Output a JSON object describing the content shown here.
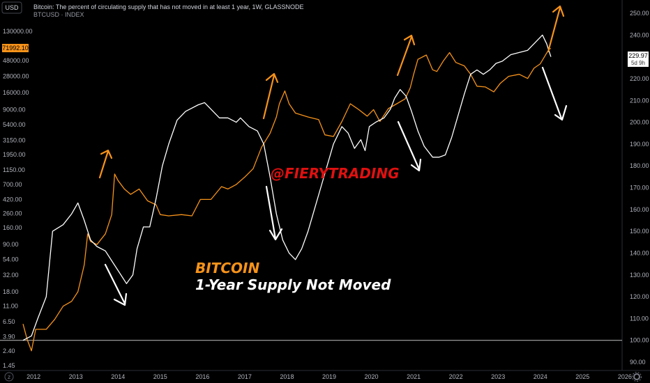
{
  "header": {
    "currency_button": "USD",
    "title_line": "Bitcoin: The percent of circulating supply that has not moved in at least 1 year, 1W, GLASSNODE",
    "subtitle_line": "BTCUSD · INDEX",
    "price_badge": "71992.10",
    "right_badge_value": "229.97",
    "right_badge_time": "5d 9h"
  },
  "annotations": {
    "watermark": "@FIERYTRADING",
    "title_orange": "BITCOIN",
    "title_white": "1-Year Supply Not Moved"
  },
  "colors": {
    "background": "#000000",
    "btc_price_line": "#f7931a",
    "supply_line": "#ffffff",
    "arrow_orange": "#f7931a",
    "arrow_white": "#ffffff",
    "watermark": "#e01010",
    "baseline": "#c0c0c0"
  },
  "icons": {
    "bottom_left": "z-icon",
    "bottom_right": "settings-icon"
  },
  "chart_data": {
    "type": "line",
    "x_ticks": [
      "2012",
      "2013",
      "2014",
      "2015",
      "2016",
      "2017",
      "2018",
      "2019",
      "2020",
      "2021",
      "2022",
      "2023",
      "2024",
      "2025",
      "2026"
    ],
    "left_axis": {
      "scale": "log",
      "ticks": [
        "130000.00",
        "48000.00",
        "28000.00",
        "16000.00",
        "9000.00",
        "5400.00",
        "3150.00",
        "1950.00",
        "1150.00",
        "700.00",
        "420.00",
        "260.00",
        "160.00",
        "90.00",
        "54.00",
        "32.00",
        "18.00",
        "11.00",
        "6.50",
        "3.90",
        "2.40",
        "1.45"
      ]
    },
    "right_axis": {
      "ticks": [
        250,
        240,
        230,
        220,
        210,
        200,
        190,
        180,
        170,
        160,
        150,
        140,
        130,
        120,
        110,
        100,
        90
      ],
      "range": [
        88,
        252
      ]
    },
    "baseline_value": 100,
    "series": [
      {
        "name": "BTCUSD",
        "axis": "left",
        "points": [
          [
            2011.75,
            6.0
          ],
          [
            2011.85,
            3.5
          ],
          [
            2011.95,
            2.4
          ],
          [
            2012.05,
            5.0
          ],
          [
            2012.3,
            5.0
          ],
          [
            2012.5,
            7.0
          ],
          [
            2012.7,
            11.0
          ],
          [
            2012.9,
            13.0
          ],
          [
            2013.05,
            18.0
          ],
          [
            2013.2,
            45.0
          ],
          [
            2013.28,
            130.0
          ],
          [
            2013.35,
            100.0
          ],
          [
            2013.5,
            90.0
          ],
          [
            2013.7,
            130.0
          ],
          [
            2013.85,
            250.0
          ],
          [
            2013.92,
            1000.0
          ],
          [
            2014.0,
            800.0
          ],
          [
            2014.15,
            600.0
          ],
          [
            2014.3,
            500.0
          ],
          [
            2014.5,
            600.0
          ],
          [
            2014.7,
            400.0
          ],
          [
            2014.9,
            350.0
          ],
          [
            2015.0,
            250.0
          ],
          [
            2015.2,
            240.0
          ],
          [
            2015.5,
            250.0
          ],
          [
            2015.75,
            240.0
          ],
          [
            2015.95,
            420.0
          ],
          [
            2016.2,
            420.0
          ],
          [
            2016.45,
            650.0
          ],
          [
            2016.6,
            600.0
          ],
          [
            2016.8,
            700.0
          ],
          [
            2017.0,
            900.0
          ],
          [
            2017.2,
            1200.0
          ],
          [
            2017.4,
            2500.0
          ],
          [
            2017.6,
            4000.0
          ],
          [
            2017.75,
            7000.0
          ],
          [
            2017.82,
            11000.0
          ],
          [
            2017.95,
            17000.0
          ],
          [
            2018.05,
            11000.0
          ],
          [
            2018.2,
            8000.0
          ],
          [
            2018.5,
            7000.0
          ],
          [
            2018.75,
            6400.0
          ],
          [
            2018.9,
            3800.0
          ],
          [
            2019.1,
            3600.0
          ],
          [
            2019.3,
            6000.0
          ],
          [
            2019.5,
            11000.0
          ],
          [
            2019.7,
            9000.0
          ],
          [
            2019.9,
            7200.0
          ],
          [
            2020.05,
            9000.0
          ],
          [
            2020.2,
            6000.0
          ],
          [
            2020.4,
            9300.0
          ],
          [
            2020.6,
            11000.0
          ],
          [
            2020.8,
            13000.0
          ],
          [
            2020.92,
            19000.0
          ],
          [
            2021.0,
            30000.0
          ],
          [
            2021.1,
            50000.0
          ],
          [
            2021.3,
            58000.0
          ],
          [
            2021.45,
            35000.0
          ],
          [
            2021.55,
            33000.0
          ],
          [
            2021.7,
            47000.0
          ],
          [
            2021.85,
            63000.0
          ],
          [
            2022.0,
            45000.0
          ],
          [
            2022.2,
            40000.0
          ],
          [
            2022.35,
            30000.0
          ],
          [
            2022.5,
            20000.0
          ],
          [
            2022.7,
            19500.0
          ],
          [
            2022.9,
            16500.0
          ],
          [
            2023.05,
            22000.0
          ],
          [
            2023.25,
            28000.0
          ],
          [
            2023.5,
            30000.0
          ],
          [
            2023.7,
            26000.0
          ],
          [
            2023.85,
            37000.0
          ],
          [
            2024.0,
            43000.0
          ],
          [
            2024.15,
            62000.0
          ],
          [
            2024.22,
            72000.0
          ],
          [
            2024.25,
            71992.1
          ]
        ]
      },
      {
        "name": "1-Year Supply Not Moved",
        "axis": "right",
        "points": [
          [
            2011.75,
            100
          ],
          [
            2011.95,
            102
          ],
          [
            2012.1,
            110
          ],
          [
            2012.3,
            120
          ],
          [
            2012.45,
            150
          ],
          [
            2012.7,
            153
          ],
          [
            2012.9,
            158
          ],
          [
            2013.05,
            163
          ],
          [
            2013.2,
            155
          ],
          [
            2013.35,
            146
          ],
          [
            2013.5,
            143
          ],
          [
            2013.7,
            141
          ],
          [
            2013.9,
            135
          ],
          [
            2014.0,
            132
          ],
          [
            2014.2,
            126
          ],
          [
            2014.35,
            130
          ],
          [
            2014.45,
            142
          ],
          [
            2014.6,
            152
          ],
          [
            2014.75,
            152
          ],
          [
            2014.9,
            165
          ],
          [
            2015.05,
            180
          ],
          [
            2015.2,
            190
          ],
          [
            2015.4,
            201
          ],
          [
            2015.6,
            205
          ],
          [
            2015.9,
            208
          ],
          [
            2016.05,
            209
          ],
          [
            2016.2,
            206
          ],
          [
            2016.4,
            202
          ],
          [
            2016.6,
            202
          ],
          [
            2016.8,
            200
          ],
          [
            2016.9,
            202
          ],
          [
            2017.1,
            198
          ],
          [
            2017.3,
            196
          ],
          [
            2017.45,
            190
          ],
          [
            2017.6,
            175
          ],
          [
            2017.75,
            158
          ],
          [
            2017.9,
            146
          ],
          [
            2018.05,
            140
          ],
          [
            2018.2,
            137
          ],
          [
            2018.35,
            142
          ],
          [
            2018.5,
            150
          ],
          [
            2018.65,
            160
          ],
          [
            2018.8,
            170
          ],
          [
            2018.95,
            180
          ],
          [
            2019.1,
            190
          ],
          [
            2019.3,
            198
          ],
          [
            2019.45,
            195
          ],
          [
            2019.6,
            188
          ],
          [
            2019.75,
            192
          ],
          [
            2019.85,
            187
          ],
          [
            2019.95,
            198
          ],
          [
            2020.1,
            200
          ],
          [
            2020.3,
            202
          ],
          [
            2020.45,
            206
          ],
          [
            2020.55,
            211
          ],
          [
            2020.68,
            215
          ],
          [
            2020.82,
            212
          ],
          [
            2020.95,
            205
          ],
          [
            2021.1,
            196
          ],
          [
            2021.25,
            189
          ],
          [
            2021.45,
            184
          ],
          [
            2021.6,
            184
          ],
          [
            2021.75,
            185
          ],
          [
            2021.9,
            193
          ],
          [
            2022.05,
            203
          ],
          [
            2022.2,
            213
          ],
          [
            2022.35,
            222
          ],
          [
            2022.5,
            224
          ],
          [
            2022.65,
            222
          ],
          [
            2022.8,
            224
          ],
          [
            2022.95,
            227
          ],
          [
            2023.1,
            228
          ],
          [
            2023.3,
            231
          ],
          [
            2023.5,
            232
          ],
          [
            2023.7,
            233
          ],
          [
            2023.85,
            236
          ],
          [
            2023.95,
            238
          ],
          [
            2024.05,
            240
          ],
          [
            2024.15,
            236
          ],
          [
            2024.25,
            230
          ]
        ]
      }
    ],
    "grid": false
  }
}
